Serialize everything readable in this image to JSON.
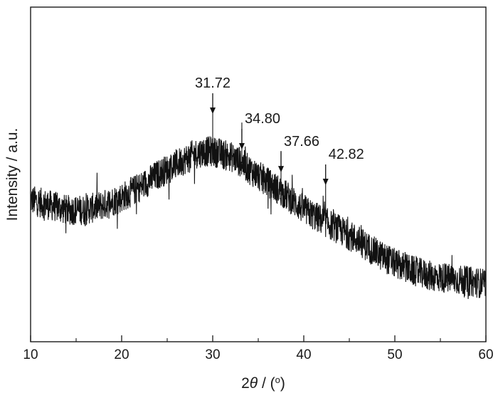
{
  "chart_data": {
    "type": "line",
    "xlabel": {
      "prefix": "2",
      "symbol": "θ",
      "suffix": " / (",
      "unit_sup": "o",
      "close": ")"
    },
    "ylabel": "Intensity / a.u.",
    "xlim": [
      10,
      60
    ],
    "xticks": [
      "10",
      "20",
      "30",
      "40",
      "50",
      "60"
    ],
    "grid": false,
    "series": [
      {
        "name": "",
        "description_points": [
          [
            10,
            0.4
          ],
          [
            12,
            0.38
          ],
          [
            14,
            0.36
          ],
          [
            16,
            0.36
          ],
          [
            18,
            0.38
          ],
          [
            20,
            0.41
          ],
          [
            22,
            0.45
          ],
          [
            24,
            0.5
          ],
          [
            26,
            0.54
          ],
          [
            28,
            0.58
          ],
          [
            29,
            0.59
          ],
          [
            30,
            0.59
          ],
          [
            31,
            0.58
          ],
          [
            32,
            0.57
          ],
          [
            33,
            0.55
          ],
          [
            34,
            0.52
          ],
          [
            36,
            0.47
          ],
          [
            38,
            0.42
          ],
          [
            40,
            0.36
          ],
          [
            42,
            0.32
          ],
          [
            44,
            0.28
          ],
          [
            46,
            0.24
          ],
          [
            48,
            0.19
          ],
          [
            50,
            0.15
          ],
          [
            52,
            0.12
          ],
          [
            54,
            0.1
          ],
          [
            56,
            0.09
          ],
          [
            58,
            0.08
          ],
          [
            60,
            0.07
          ]
        ],
        "noise_amplitude": 0.06
      }
    ],
    "annotations": [
      {
        "label": "31.72",
        "x": 30.0,
        "y": 0.78
      },
      {
        "label": "34.80",
        "x": 33.2,
        "y": 0.64
      },
      {
        "label": "37.66",
        "x": 37.5,
        "y": 0.55
      },
      {
        "label": "42.82",
        "x": 42.4,
        "y": 0.5
      }
    ]
  }
}
